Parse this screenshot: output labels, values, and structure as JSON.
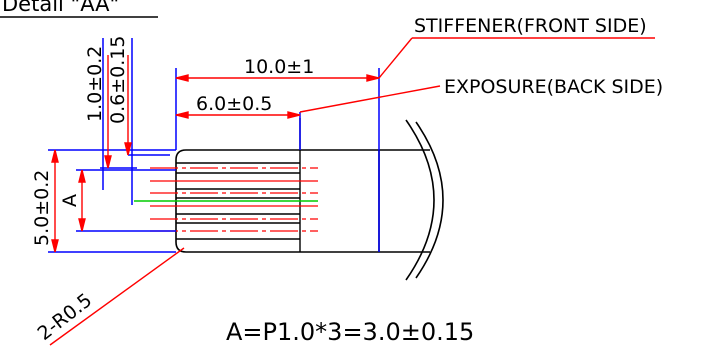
{
  "title": "Detail \"AA\"",
  "callouts": {
    "stiffener": "STIFFENER(FRONT SIDE)",
    "exposure": "EXPOSURE(BACK SIDE)"
  },
  "dimensions": {
    "width_total": "10.0±1",
    "width_exposure": "6.0±0.5",
    "top_left_1": "1.0±0.2",
    "top_left_2": "0.6±0.15",
    "height_total": "5.0±0.2",
    "pitch_label": "A",
    "corner_radius": "2-R0.5"
  },
  "formula": "A=P1.0*3=3.0±0.15",
  "colors": {
    "outline": "#000000",
    "dimension": "#ff0000",
    "reference": "#0000ff",
    "centerline": "#00cc00"
  }
}
